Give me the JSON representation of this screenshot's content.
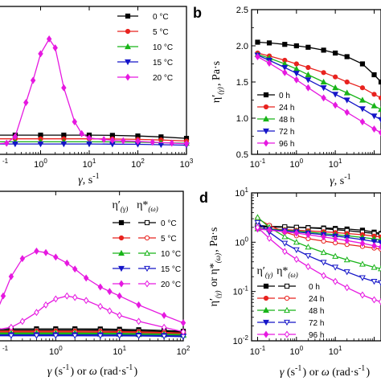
{
  "chart_data": [
    {
      "panel": "a",
      "type": "line",
      "xscale": "log",
      "xlim": [
        0.1,
        1000
      ],
      "ylim": [
        0,
        100
      ],
      "x_ticks": [
        "10-1",
        "100",
        "101",
        "102",
        "103"
      ],
      "xlabel": "γ, s-1",
      "ylabel": "",
      "legend": "top-right",
      "series": [
        {
          "name": "0 °C",
          "color": "#000000",
          "marker": "square",
          "x": [
            0.1,
            0.3,
            1,
            3,
            10,
            30,
            100,
            300,
            1000
          ],
          "y": [
            13.0,
            13.0,
            13.0,
            13.0,
            13.0,
            12.8,
            12.4,
            11.8,
            10.8
          ]
        },
        {
          "name": "5 °C",
          "color": "#e8231f",
          "marker": "circle",
          "x": [
            0.1,
            0.3,
            1,
            3,
            10,
            30,
            100,
            300,
            1000
          ],
          "y": [
            10.5,
            10.5,
            10.5,
            10.5,
            10.5,
            10.4,
            10.1,
            9.7,
            9.0
          ]
        },
        {
          "name": "10 °C",
          "color": "#18b418",
          "marker": "triangle-up",
          "x": [
            0.1,
            0.3,
            1,
            3,
            10,
            30,
            100,
            300,
            1000
          ],
          "y": [
            8.5,
            8.5,
            8.5,
            8.5,
            8.5,
            8.4,
            8.2,
            7.9,
            7.5
          ]
        },
        {
          "name": "15 °C",
          "color": "#1515c8",
          "marker": "triangle-down",
          "x": [
            0.1,
            0.3,
            1,
            3,
            10,
            30,
            100,
            300,
            1000
          ],
          "y": [
            7.0,
            7.0,
            7.0,
            7.0,
            7.0,
            6.9,
            6.8,
            6.5,
            6.2
          ]
        },
        {
          "name": "20 °C",
          "color": "#e619e0",
          "marker": "diamond",
          "x": [
            0.1,
            0.2,
            0.3,
            0.5,
            0.7,
            1,
            1.5,
            2,
            3,
            5,
            7,
            10,
            20,
            30,
            50,
            100,
            200,
            500,
            1000
          ],
          "y": [
            7.0,
            7.5,
            12.0,
            35.0,
            50.0,
            68.0,
            78.0,
            72.0,
            45.0,
            22.0,
            14.0,
            11.0,
            10.0,
            9.5,
            9.2,
            8.8,
            8.2,
            7.6,
            7.2
          ]
        }
      ]
    },
    {
      "panel": "b",
      "type": "line",
      "xscale": "log",
      "xlim": [
        0.07,
        150
      ],
      "ylim": [
        0.5,
        2.5
      ],
      "x_ticks": [
        "10-1",
        "100",
        "101"
      ],
      "y_ticks": [
        "0.5",
        "1.0",
        "1.5",
        "2.0",
        "2.5"
      ],
      "xlabel": "γ, s-1",
      "ylabel": "η′(γ), Pa·s",
      "legend": "bottom-left",
      "series": [
        {
          "name": "0 h",
          "color": "#000000",
          "marker": "square",
          "x": [
            0.1,
            0.2,
            0.5,
            1,
            2,
            5,
            10,
            20,
            50,
            100,
            150
          ],
          "y": [
            2.05,
            2.04,
            2.02,
            2.0,
            1.98,
            1.94,
            1.9,
            1.85,
            1.75,
            1.6,
            1.5
          ]
        },
        {
          "name": "24 h",
          "color": "#e8231f",
          "marker": "circle",
          "x": [
            0.1,
            0.2,
            0.5,
            1,
            2,
            5,
            10,
            20,
            50,
            100,
            150
          ],
          "y": [
            1.9,
            1.86,
            1.8,
            1.75,
            1.7,
            1.63,
            1.57,
            1.5,
            1.42,
            1.33,
            1.28
          ]
        },
        {
          "name": "48 h",
          "color": "#18b418",
          "marker": "triangle-up",
          "x": [
            0.1,
            0.2,
            0.5,
            1,
            2,
            5,
            10,
            20,
            50,
            100,
            150
          ],
          "y": [
            1.88,
            1.83,
            1.75,
            1.68,
            1.6,
            1.5,
            1.42,
            1.35,
            1.25,
            1.17,
            1.12
          ]
        },
        {
          "name": "72 h",
          "color": "#1515c8",
          "marker": "triangle-down",
          "x": [
            0.1,
            0.2,
            0.5,
            1,
            2,
            5,
            10,
            20,
            50,
            100,
            150
          ],
          "y": [
            1.87,
            1.8,
            1.7,
            1.62,
            1.53,
            1.42,
            1.33,
            1.25,
            1.13,
            1.03,
            0.98
          ]
        },
        {
          "name": "96 h",
          "color": "#e619e0",
          "marker": "diamond",
          "x": [
            0.1,
            0.2,
            0.5,
            1,
            2,
            5,
            10,
            20,
            50,
            100,
            150
          ],
          "y": [
            1.85,
            1.76,
            1.63,
            1.53,
            1.42,
            1.28,
            1.18,
            1.08,
            0.95,
            0.85,
            0.8
          ]
        }
      ]
    },
    {
      "panel": "c",
      "type": "line",
      "xscale": "log",
      "xlim": [
        0.1,
        100
      ],
      "ylim": [
        0,
        100
      ],
      "x_ticks": [
        "10-1",
        "100",
        "101",
        "102"
      ],
      "xlabel": "γ (s-1) or ω (rad·s-1)",
      "ylabel": "",
      "legend": "top-right",
      "legend_header": [
        "η′(γ)",
        "η*(ω)"
      ],
      "series": [
        {
          "name": "0 °C",
          "color": "#000000",
          "marker": "square",
          "fill": "filled",
          "x": [
            0.1,
            0.2,
            0.5,
            1,
            2,
            5,
            10,
            20,
            50,
            100
          ],
          "y": [
            8.0,
            8.0,
            8.0,
            8.0,
            8.0,
            7.9,
            7.7,
            7.4,
            6.9,
            6.4
          ]
        },
        {
          "name": "0 °C",
          "color": "#000000",
          "marker": "square",
          "fill": "open",
          "x": [
            0.1,
            0.2,
            0.5,
            1,
            2,
            5,
            10,
            20,
            50,
            100
          ],
          "y": [
            7.2,
            7.2,
            7.2,
            7.2,
            7.2,
            7.1,
            6.9,
            6.6,
            6.2,
            5.8
          ]
        },
        {
          "name": "5 °C",
          "color": "#e8231f",
          "marker": "circle",
          "fill": "filled",
          "x": [
            0.1,
            0.2,
            0.5,
            1,
            2,
            5,
            10,
            20,
            50,
            100
          ],
          "y": [
            6.5,
            6.5,
            6.5,
            6.5,
            6.5,
            6.4,
            6.2,
            6.0,
            5.6,
            5.2
          ]
        },
        {
          "name": "5 °C",
          "color": "#e8231f",
          "marker": "circle",
          "fill": "open",
          "x": [
            0.1,
            0.2,
            0.5,
            1,
            2,
            5,
            10,
            20,
            50,
            100
          ],
          "y": [
            5.8,
            5.8,
            5.8,
            5.8,
            5.8,
            5.7,
            5.6,
            5.4,
            5.0,
            4.7
          ]
        },
        {
          "name": "10 °C",
          "color": "#18b418",
          "marker": "triangle-up",
          "fill": "filled",
          "x": [
            0.1,
            0.2,
            0.5,
            1,
            2,
            5,
            10,
            20,
            50,
            100
          ],
          "y": [
            5.2,
            5.2,
            5.2,
            5.2,
            5.2,
            5.1,
            5.0,
            4.8,
            4.5,
            4.2
          ]
        },
        {
          "name": "10 °C",
          "color": "#18b418",
          "marker": "triangle-up",
          "fill": "open",
          "x": [
            0.1,
            0.2,
            0.5,
            1,
            2,
            5,
            10,
            20,
            50,
            100
          ],
          "y": [
            4.6,
            4.6,
            4.6,
            4.6,
            4.6,
            4.5,
            4.4,
            4.2,
            4.0,
            3.7
          ]
        },
        {
          "name": "15 °C",
          "color": "#1515c8",
          "marker": "triangle-down",
          "fill": "filled",
          "x": [
            0.1,
            0.2,
            0.5,
            1,
            2,
            5,
            10,
            20,
            50,
            100
          ],
          "y": [
            4.0,
            4.0,
            4.0,
            4.0,
            4.0,
            3.9,
            3.8,
            3.7,
            3.5,
            3.2
          ]
        },
        {
          "name": "15 °C",
          "color": "#1515c8",
          "marker": "triangle-down",
          "fill": "open",
          "x": [
            0.1,
            0.2,
            0.5,
            1,
            2,
            5,
            10,
            20,
            50,
            100
          ],
          "y": [
            3.4,
            3.4,
            3.4,
            3.4,
            3.4,
            3.3,
            3.3,
            3.2,
            3.0,
            2.8
          ]
        },
        {
          "name": "20 °C",
          "color": "#e619e0",
          "marker": "diamond",
          "fill": "filled",
          "x": [
            0.1,
            0.15,
            0.2,
            0.3,
            0.5,
            0.7,
            1,
            1.5,
            2,
            3,
            5,
            7,
            10,
            20,
            50,
            100
          ],
          "y": [
            12.0,
            30.0,
            43.0,
            55.0,
            60.0,
            59.0,
            56.0,
            52.0,
            48.0,
            42.0,
            36.0,
            33.0,
            30.0,
            24.0,
            17.0,
            12.0
          ]
        },
        {
          "name": "20 °C",
          "color": "#e619e0",
          "marker": "diamond",
          "fill": "open",
          "x": [
            0.1,
            0.2,
            0.3,
            0.5,
            0.7,
            1,
            1.5,
            2,
            3,
            5,
            7,
            10,
            20,
            50,
            100
          ],
          "y": [
            7.0,
            9.0,
            13.0,
            19.0,
            24.0,
            28.0,
            30.0,
            29.0,
            27.0,
            23.0,
            20.0,
            17.0,
            13.0,
            9.0,
            6.0
          ]
        }
      ]
    },
    {
      "panel": "d",
      "type": "line",
      "xscale": "log",
      "yscale": "log",
      "xlim": [
        0.07,
        150
      ],
      "ylim": [
        0.01,
        10
      ],
      "x_ticks": [
        "10-1",
        "100",
        "101"
      ],
      "y_ticks": [
        "10-2",
        "10-1",
        "100",
        "101"
      ],
      "xlabel": "γ (s-1) or ω (rad·s-1)",
      "ylabel": "η′(γ) or η*(ω), Pa·s",
      "legend": "bottom-left",
      "legend_header": [
        "η′(γ)",
        "η*(ω)"
      ],
      "series": [
        {
          "name": "0 h",
          "color": "#000000",
          "marker": "square",
          "fill": "filled",
          "x": [
            0.1,
            0.2,
            0.5,
            1,
            2,
            5,
            10,
            20,
            50,
            100,
            150
          ],
          "y": [
            2.05,
            2.04,
            2.02,
            2.0,
            1.98,
            1.94,
            1.9,
            1.85,
            1.75,
            1.6,
            1.5
          ]
        },
        {
          "name": "0 h",
          "color": "#000000",
          "marker": "square",
          "fill": "open",
          "x": [
            0.1,
            0.2,
            0.5,
            1,
            2,
            5,
            10,
            20,
            50,
            100,
            150
          ],
          "y": [
            2.2,
            2.1,
            2.05,
            2.0,
            1.95,
            1.88,
            1.8,
            1.72,
            1.6,
            1.5,
            1.45
          ]
        },
        {
          "name": "24 h",
          "color": "#e8231f",
          "marker": "circle",
          "fill": "filled",
          "x": [
            0.1,
            0.2,
            0.5,
            1,
            2,
            5,
            10,
            20,
            50,
            100,
            150
          ],
          "y": [
            1.9,
            1.86,
            1.8,
            1.75,
            1.7,
            1.63,
            1.57,
            1.5,
            1.42,
            1.33,
            1.28
          ]
        },
        {
          "name": "24 h",
          "color": "#e8231f",
          "marker": "circle",
          "fill": "open",
          "x": [
            0.1,
            0.2,
            0.5,
            1,
            2,
            5,
            10,
            20,
            50,
            100,
            150
          ],
          "y": [
            3.0,
            2.2,
            1.6,
            1.35,
            1.18,
            1.05,
            0.97,
            0.9,
            0.82,
            0.76,
            0.72
          ]
        },
        {
          "name": "48 h",
          "color": "#18b418",
          "marker": "triangle-up",
          "fill": "filled",
          "x": [
            0.1,
            0.2,
            0.5,
            1,
            2,
            5,
            10,
            20,
            50,
            100,
            150
          ],
          "y": [
            1.88,
            1.83,
            1.75,
            1.68,
            1.6,
            1.5,
            1.42,
            1.35,
            1.25,
            1.17,
            1.12
          ]
        },
        {
          "name": "48 h",
          "color": "#18b418",
          "marker": "triangle-up",
          "fill": "open",
          "x": [
            0.1,
            0.2,
            0.5,
            1,
            2,
            5,
            10,
            20,
            50,
            100,
            150
          ],
          "y": [
            3.2,
            2.0,
            1.3,
            1.0,
            0.8,
            0.62,
            0.52,
            0.44,
            0.36,
            0.31,
            0.29
          ]
        },
        {
          "name": "72 h",
          "color": "#1515c8",
          "marker": "triangle-down",
          "fill": "filled",
          "x": [
            0.1,
            0.2,
            0.5,
            1,
            2,
            5,
            10,
            20,
            50,
            100,
            150
          ],
          "y": [
            1.87,
            1.8,
            1.7,
            1.62,
            1.53,
            1.42,
            1.33,
            1.25,
            1.13,
            1.03,
            0.98
          ]
        },
        {
          "name": "72 h",
          "color": "#1515c8",
          "marker": "triangle-down",
          "fill": "open",
          "x": [
            0.1,
            0.2,
            0.5,
            1,
            2,
            5,
            10,
            20,
            50,
            100,
            150
          ],
          "y": [
            2.5,
            1.6,
            0.95,
            0.7,
            0.53,
            0.39,
            0.31,
            0.25,
            0.19,
            0.16,
            0.15
          ]
        },
        {
          "name": "96 h",
          "color": "#e619e0",
          "marker": "diamond",
          "fill": "filled",
          "x": [
            0.1,
            0.2,
            0.5,
            1,
            2,
            5,
            10,
            20,
            50,
            100,
            150
          ],
          "y": [
            1.85,
            1.76,
            1.63,
            1.53,
            1.42,
            1.28,
            1.18,
            1.08,
            0.95,
            0.85,
            0.8
          ]
        },
        {
          "name": "96 h",
          "color": "#e619e0",
          "marker": "diamond",
          "fill": "open",
          "x": [
            0.1,
            0.2,
            0.5,
            1,
            2,
            5,
            10,
            20,
            50,
            100,
            150
          ],
          "y": [
            2.0,
            1.2,
            0.65,
            0.45,
            0.32,
            0.21,
            0.16,
            0.12,
            0.085,
            0.068,
            0.062
          ]
        }
      ]
    }
  ],
  "panels": {
    "a": {
      "letter": "",
      "xlabel": "γ, s-1",
      "ticks": [
        "-1",
        "100",
        "101",
        "102",
        "103"
      ]
    },
    "b": {
      "letter": "b",
      "xlabel": "γ, s-1",
      "ylabel": "η′(γ), Pa·s",
      "xticks": [
        "10-1",
        "100",
        "101"
      ],
      "yticks": [
        "0.5",
        "1.0",
        "1.5",
        "2.0",
        "2.5"
      ]
    },
    "c": {
      "letter": "",
      "xlabel": "γ (s-1) or ω (rad·s-1)",
      "ticks": [
        "-1",
        "100",
        "101",
        "102"
      ],
      "legend_header_1": "η′(γ)",
      "legend_header_2": "η*(ω)"
    },
    "d": {
      "letter": "d",
      "xlabel": "γ (s-1) or ω (rad·s-1)",
      "ylabel": "η′(γ) or η*(ω), Pa·s",
      "xticks": [
        "10-1",
        "100",
        "101"
      ],
      "yticks": [
        "10-2",
        "10-1",
        "100",
        "101"
      ],
      "legend_header_1": "η′(γ)",
      "legend_header_2": "η*(ω)"
    }
  }
}
